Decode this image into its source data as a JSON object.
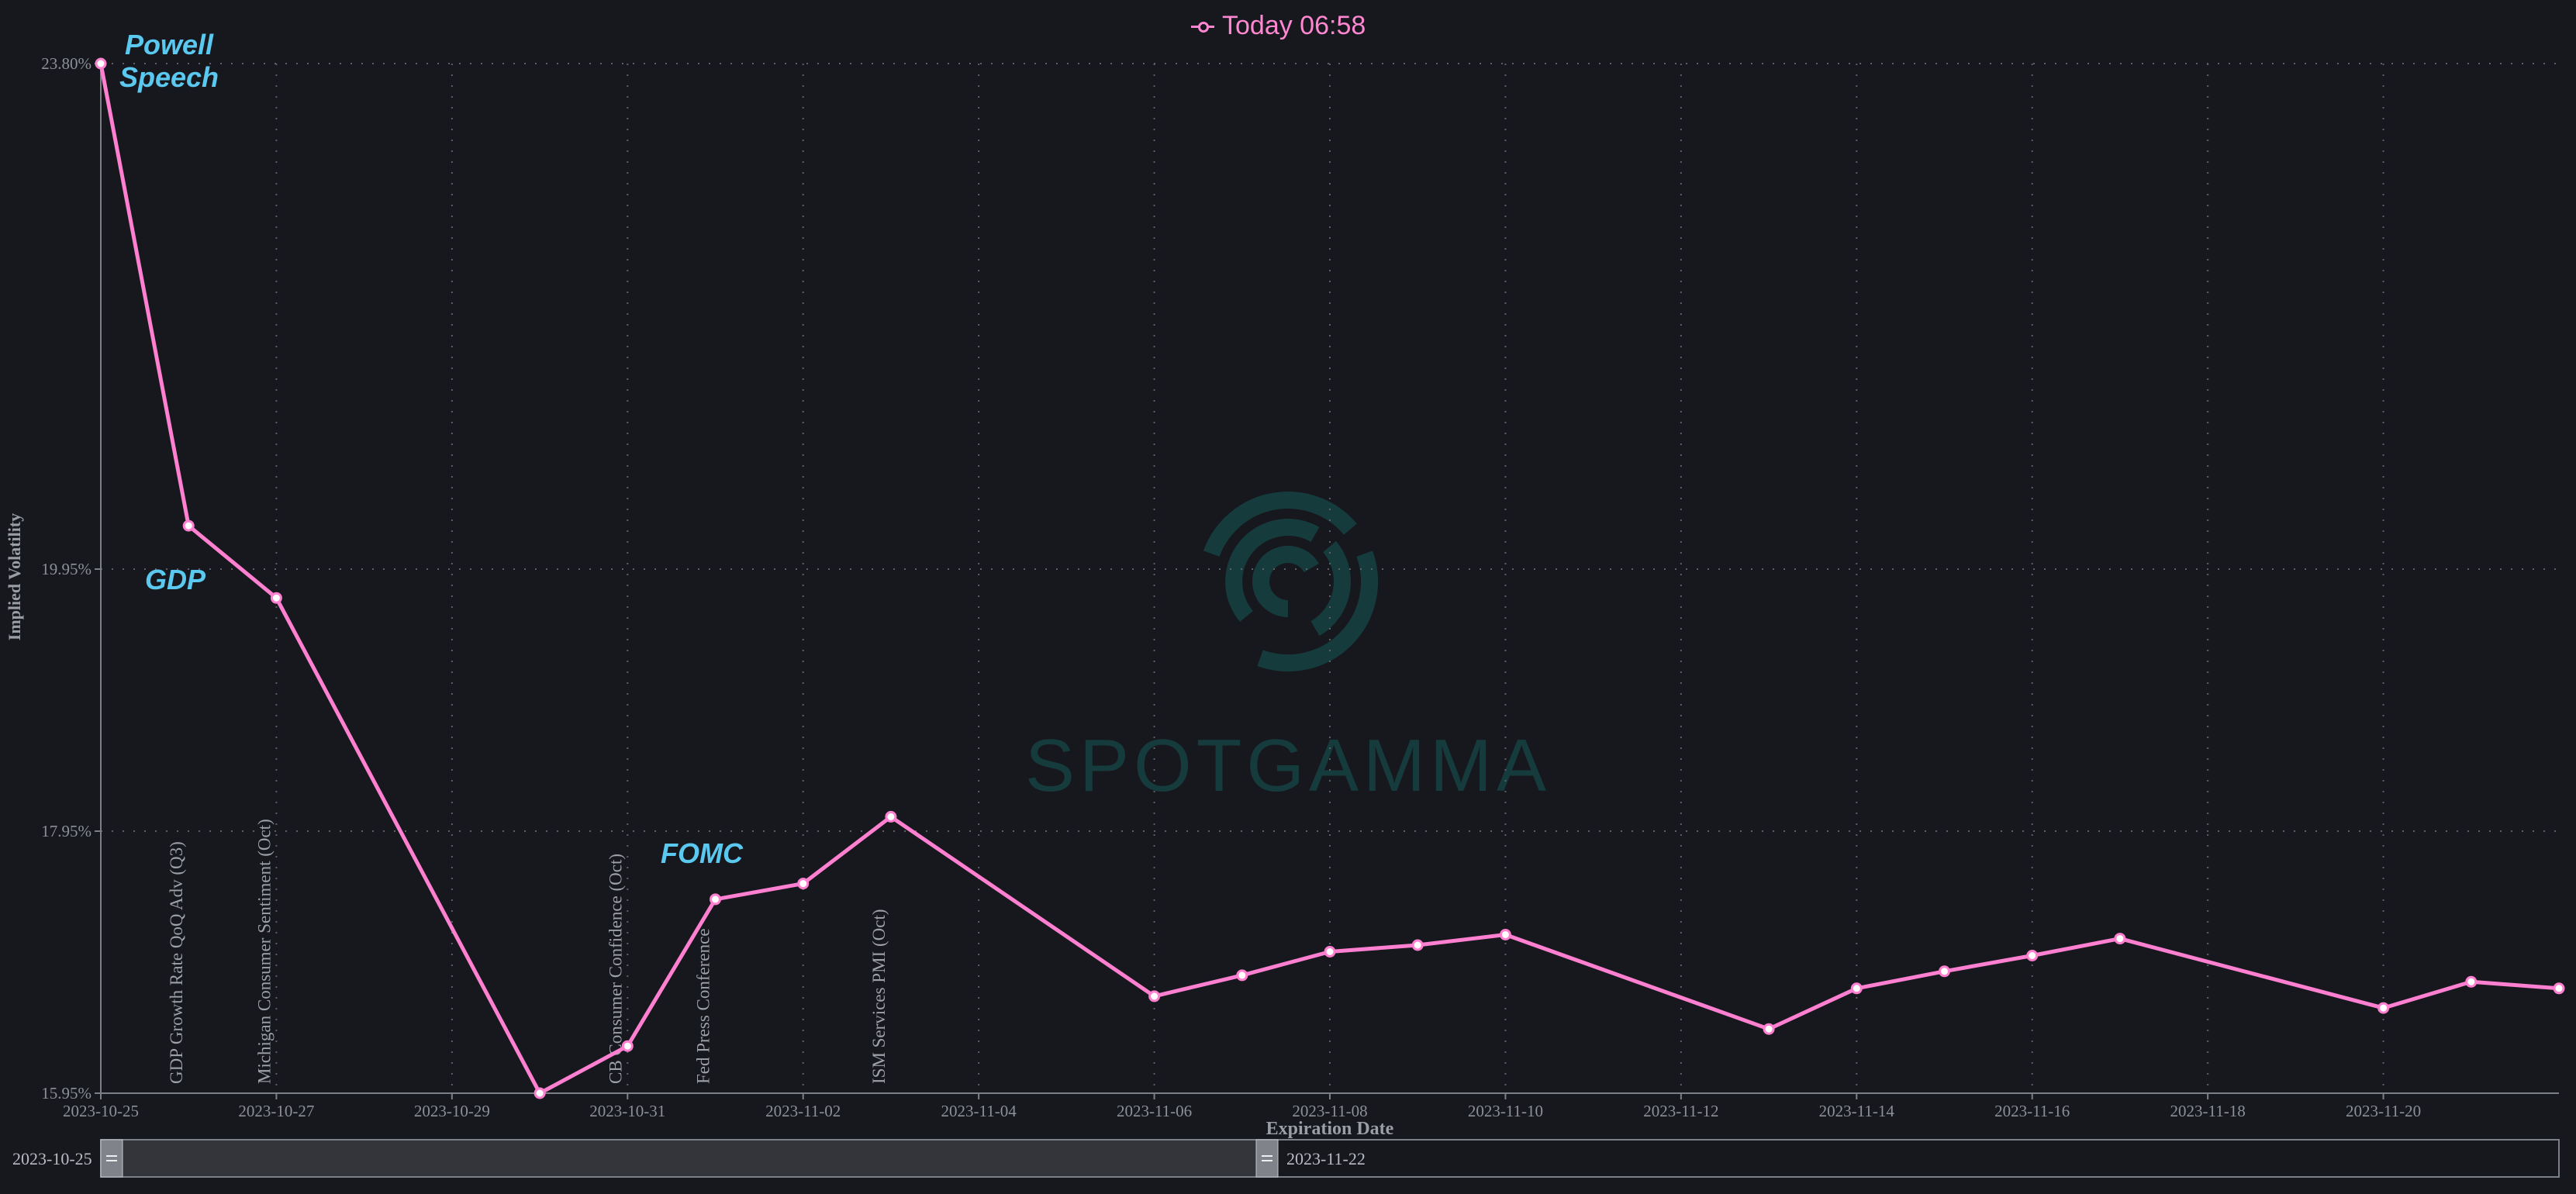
{
  "legend": {
    "label": "Today 06:58",
    "color": "#ff86d0",
    "icon": "line-with-circle-icon"
  },
  "range": {
    "start": "2023-10-25",
    "end": "2023-11-22"
  },
  "watermark": {
    "text": "SPOTGAMMA",
    "color": "#163b3d"
  },
  "chart_data": {
    "type": "line",
    "title": "",
    "xlabel": "Expiration Date",
    "ylabel": "Implied Volatility",
    "xlim": [
      "2023-10-25",
      "2023-11-22"
    ],
    "ylim": [
      15.95,
      23.8
    ],
    "y_ticks": [
      "15.95%",
      "17.95%",
      "19.95%",
      "23.80%"
    ],
    "y_tick_values": [
      15.95,
      17.95,
      19.95,
      23.8
    ],
    "x_ticks": [
      "2023-10-25",
      "2023-10-27",
      "2023-10-29",
      "2023-10-31",
      "2023-11-02",
      "2023-11-04",
      "2023-11-06",
      "2023-11-08",
      "2023-11-10",
      "2023-11-12",
      "2023-11-14",
      "2023-11-16",
      "2023-11-18",
      "2023-11-20"
    ],
    "grid": true,
    "legend_position": "top-center",
    "series": [
      {
        "name": "Today 06:58",
        "color": "#ff7fd0",
        "points": [
          {
            "x": "2023-10-25",
            "y": 23.8
          },
          {
            "x": "2023-10-26",
            "y": 20.28
          },
          {
            "x": "2023-10-27",
            "y": 19.73
          },
          {
            "x": "2023-10-30",
            "y": 15.95
          },
          {
            "x": "2023-10-31",
            "y": 16.31
          },
          {
            "x": "2023-11-01",
            "y": 17.43
          },
          {
            "x": "2023-11-02",
            "y": 17.55
          },
          {
            "x": "2023-11-03",
            "y": 18.06
          },
          {
            "x": "2023-11-06",
            "y": 16.69
          },
          {
            "x": "2023-11-07",
            "y": 16.85
          },
          {
            "x": "2023-11-08",
            "y": 17.03
          },
          {
            "x": "2023-11-09",
            "y": 17.08
          },
          {
            "x": "2023-11-10",
            "y": 17.16
          },
          {
            "x": "2023-11-13",
            "y": 16.44
          },
          {
            "x": "2023-11-14",
            "y": 16.75
          },
          {
            "x": "2023-11-15",
            "y": 16.88
          },
          {
            "x": "2023-11-16",
            "y": 17.0
          },
          {
            "x": "2023-11-17",
            "y": 17.13
          },
          {
            "x": "2023-11-20",
            "y": 16.6
          },
          {
            "x": "2023-11-21",
            "y": 16.8
          },
          {
            "x": "2023-11-22",
            "y": 16.75
          }
        ]
      }
    ],
    "event_annotations": [
      {
        "x": "2023-10-26",
        "text": "GDP Growth Rate QoQ Adv (Q3)"
      },
      {
        "x": "2023-10-27",
        "text": "Michigan Consumer Sentiment (Oct)"
      },
      {
        "x": "2023-10-31",
        "text": "CB Consumer Confidence (Oct)"
      },
      {
        "x": "2023-11-01",
        "text": "Fed Press Conference"
      },
      {
        "x": "2023-11-03",
        "text": "ISM Services PMI (Oct)"
      }
    ],
    "callouts": [
      {
        "id": "powell",
        "lines": [
          "Powell",
          "Speech"
        ],
        "color": "#5bc8ef"
      },
      {
        "id": "gdp",
        "lines": [
          "GDP"
        ],
        "color": "#5bc8ef"
      },
      {
        "id": "fomc",
        "lines": [
          "FOMC"
        ],
        "color": "#5bc8ef"
      }
    ]
  }
}
